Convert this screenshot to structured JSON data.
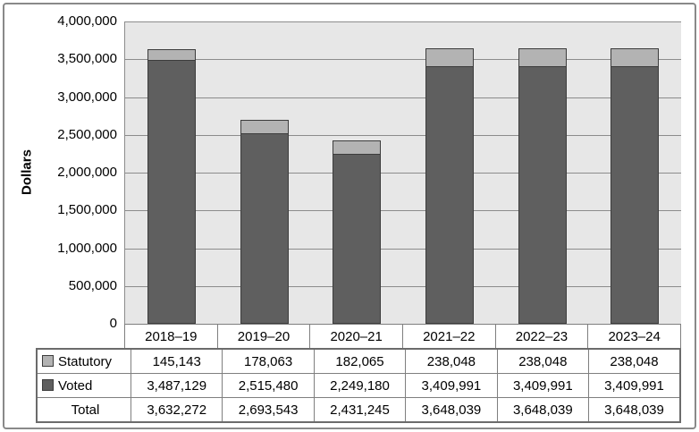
{
  "chart_data": {
    "type": "bar",
    "stacked": true,
    "title": "",
    "ylabel": "Dollars",
    "xlabel": "",
    "categories": [
      "2018–19",
      "2019–20",
      "2020–21",
      "2021–22",
      "2022–23",
      "2023–24"
    ],
    "series": [
      {
        "name": "Voted",
        "color": "#5f5f5f",
        "values": [
          3487129,
          2515480,
          2249180,
          3409991,
          3409991,
          3409991
        ],
        "labels": [
          "3,487,129",
          "2,515,480",
          "2,249,180",
          "3,409,991",
          "3,409,991",
          "3,409,991"
        ]
      },
      {
        "name": "Statutory",
        "color": "#b3b3b3",
        "values": [
          145143,
          178063,
          182065,
          238048,
          238048,
          238048
        ],
        "labels": [
          "145,143",
          "178,063",
          "182,065",
          "238,048",
          "238,048",
          "238,048"
        ]
      }
    ],
    "totals": {
      "name": "Total",
      "values": [
        3632272,
        2693543,
        2431245,
        3648039,
        3648039,
        3648039
      ],
      "labels": [
        "3,632,272",
        "2,693,543",
        "2,431,245",
        "3,648,039",
        "3,648,039",
        "3,648,039"
      ]
    },
    "ylim": [
      0,
      4000000
    ],
    "ytick_interval": 500000,
    "ytick_labels": [
      "4,000,000",
      "3,500,000",
      "3,000,000",
      "2,500,000",
      "2,000,000",
      "1,500,000",
      "1,000,000",
      "500,000",
      "0"
    ],
    "grid": "horizontal-major",
    "legend_position": "data-table-left",
    "plot_bg_color": "#e7e7e7",
    "gridline_color": "#8c8c8c",
    "bar_border_color": "#3c3c3c"
  },
  "data_table": {
    "rows": [
      {
        "label": "Statutory",
        "swatch": "#b3b3b3",
        "cells": [
          "145,143",
          "178,063",
          "182,065",
          "238,048",
          "238,048",
          "238,048"
        ]
      },
      {
        "label": "Voted",
        "swatch": "#5f5f5f",
        "cells": [
          "3,487,129",
          "2,515,480",
          "2,249,180",
          "3,409,991",
          "3,409,991",
          "3,409,991"
        ]
      },
      {
        "label": "Total",
        "swatch": null,
        "cells": [
          "3,632,272",
          "2,693,543",
          "2,431,245",
          "3,648,039",
          "3,648,039",
          "3,648,039"
        ]
      }
    ]
  }
}
